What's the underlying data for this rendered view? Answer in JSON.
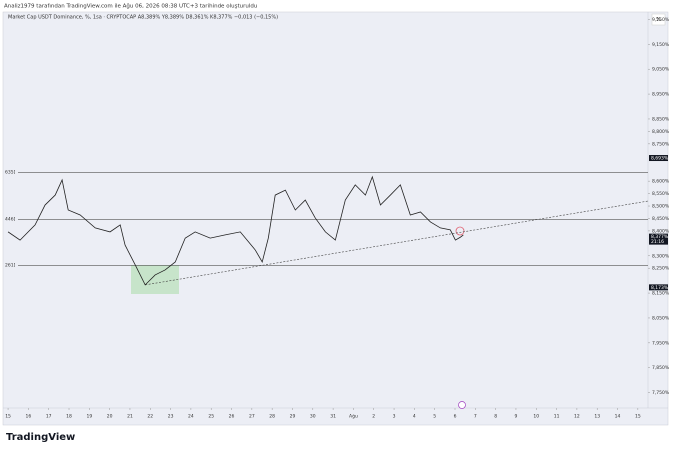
{
  "header": "Analiz1979 tarafından TradingView.com ile Ağu 06, 2026 08:38 UTC+3 tarihinde oluşturuldu",
  "legend": "Market Cap USDT Dominance, %, 1sa · CRYPTOCAP  A8,389%  Y8,389%  D8,361%  K8,377%  −0,013 (−0,15%)",
  "scale_button": "%",
  "logo": "TradingView",
  "chart_data": {
    "type": "line",
    "color": "#222222",
    "x": [
      0,
      0.59,
      1.33,
      1.82,
      2.32,
      2.66,
      2.96,
      3.55,
      4.29,
      5.02,
      5.52,
      5.76,
      6.26,
      6.75,
      7.24,
      7.73,
      8.23,
      8.72,
      9.21,
      9.95,
      10.69,
      11.43,
      12.17,
      12.51,
      12.81,
      13.15,
      13.65,
      14.14,
      14.63,
      15.12,
      15.62,
      16.11,
      16.6,
      17.09,
      17.59,
      17.93,
      18.33,
      18.82,
      19.31,
      19.8,
      20.3,
      20.79,
      21.28,
      21.77,
      22.02,
      22.27,
      22.41
    ],
    "values": [
      8.396,
      8.363,
      8.424,
      8.504,
      8.544,
      8.605,
      8.484,
      8.464,
      8.412,
      8.396,
      8.424,
      8.343,
      8.263,
      8.183,
      8.223,
      8.243,
      8.275,
      8.371,
      8.396,
      8.371,
      8.384,
      8.396,
      8.323,
      8.275,
      8.371,
      8.544,
      8.564,
      8.484,
      8.524,
      8.452,
      8.396,
      8.363,
      8.524,
      8.585,
      8.544,
      8.617,
      8.504,
      8.544,
      8.585,
      8.464,
      8.476,
      8.436,
      8.412,
      8.404,
      8.363,
      8.375,
      8.384
    ],
    "xlim": [
      -0.2,
      31.5
    ],
    "xticks": [
      {
        "value": 0,
        "label": "15"
      },
      {
        "value": 1,
        "label": "16"
      },
      {
        "value": 2,
        "label": "17"
      },
      {
        "value": 3,
        "label": "18"
      },
      {
        "value": 4,
        "label": "19"
      },
      {
        "value": 5,
        "label": "20"
      },
      {
        "value": 6,
        "label": "21"
      },
      {
        "value": 7,
        "label": "22"
      },
      {
        "value": 8,
        "label": "23"
      },
      {
        "value": 9,
        "label": "24"
      },
      {
        "value": 10,
        "label": "25"
      },
      {
        "value": 11,
        "label": "26"
      },
      {
        "value": 12,
        "label": "27"
      },
      {
        "value": 13,
        "label": "28"
      },
      {
        "value": 14,
        "label": "29"
      },
      {
        "value": 15,
        "label": "30"
      },
      {
        "value": 16,
        "label": "31"
      },
      {
        "value": 17,
        "label": "Ağu"
      },
      {
        "value": 18,
        "label": "2"
      },
      {
        "value": 19,
        "label": "3"
      },
      {
        "value": 20,
        "label": "4"
      },
      {
        "value": 21,
        "label": "5"
      },
      {
        "value": 22,
        "label": "6"
      },
      {
        "value": 23,
        "label": "7"
      },
      {
        "value": 24,
        "label": "8"
      },
      {
        "value": 25,
        "label": "9"
      },
      {
        "value": 26,
        "label": "10"
      },
      {
        "value": 27,
        "label": "11"
      },
      {
        "value": 28,
        "label": "12"
      },
      {
        "value": 29,
        "label": "13"
      },
      {
        "value": 30,
        "label": "14"
      },
      {
        "value": 31,
        "label": "15"
      }
    ],
    "ylim": [
      7.688,
      9.272
    ],
    "yticks": [
      {
        "value": 9.25,
        "label": "9,250%"
      },
      {
        "value": 9.15,
        "label": "9,150%"
      },
      {
        "value": 9.05,
        "label": "9,050%"
      },
      {
        "value": 8.95,
        "label": "8,950%"
      },
      {
        "value": 8.85,
        "label": "8,850%"
      },
      {
        "value": 8.8,
        "label": "8,800%"
      },
      {
        "value": 8.75,
        "label": "8,750%"
      },
      {
        "value": 8.6,
        "label": "8,600%"
      },
      {
        "value": 8.55,
        "label": "8,550%"
      },
      {
        "value": 8.5,
        "label": "8,500%"
      },
      {
        "value": 8.45,
        "label": "8,450%"
      },
      {
        "value": 8.4,
        "label": "8,400%"
      },
      {
        "value": 8.3,
        "label": "8,300%"
      },
      {
        "value": 8.25,
        "label": "8,250%"
      },
      {
        "value": 8.15,
        "label": "8,150%"
      },
      {
        "value": 8.05,
        "label": "8,050%"
      },
      {
        "value": 7.95,
        "label": "7,950%"
      },
      {
        "value": 7.85,
        "label": "7,850%"
      },
      {
        "value": 7.75,
        "label": "7,750%"
      }
    ],
    "levels": [
      {
        "value": 8.635,
        "label": "635]"
      },
      {
        "value": 8.446,
        "label": "446]"
      },
      {
        "value": 8.261,
        "label": "261]"
      }
    ],
    "trend_line": {
      "x": [
        6.75,
        31.5
      ],
      "values": [
        8.183,
        8.52
      ]
    },
    "price_labels": [
      {
        "value": 8.693,
        "label": "8,693%"
      },
      {
        "value": 8.377,
        "label": "8,377%"
      },
      {
        "value": 8.173,
        "label": "8,173%"
      }
    ],
    "countdown": "21:16",
    "grid": false
  }
}
